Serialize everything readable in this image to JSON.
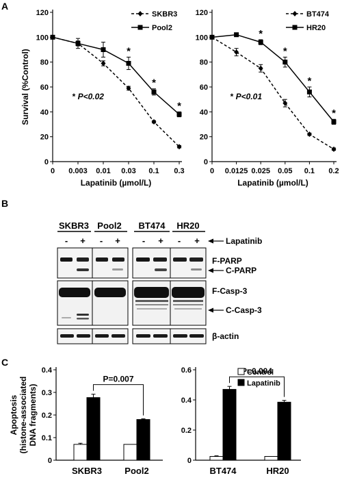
{
  "panels": {
    "A": "A",
    "B": "B",
    "C": "C"
  },
  "chart_data": [
    {
      "type": "line",
      "id": "a1",
      "x_categories": [
        "0",
        "0.003",
        "0.01",
        "0.03",
        "0.1",
        "0.3"
      ],
      "ylabel": "Survival (%Control)",
      "xlabel": "Lapatinib (µmol/L)",
      "ylim": [
        0,
        120
      ],
      "yticks": [
        0,
        20,
        40,
        60,
        80,
        100,
        120
      ],
      "series": [
        {
          "name": "SKBR3",
          "dashed": true,
          "marker": "diamond",
          "values": [
            100,
            95,
            79,
            59,
            32,
            12
          ],
          "errors": [
            0,
            2,
            2,
            1.5,
            1,
            1
          ]
        },
        {
          "name": "Pool2",
          "dashed": false,
          "marker": "square",
          "values": [
            100,
            95,
            90,
            79,
            56,
            38
          ],
          "errors": [
            0,
            4,
            6,
            5,
            2.5,
            2
          ]
        }
      ],
      "stars": [
        3,
        4,
        5
      ],
      "star_symbol": "*",
      "pvalue": {
        "prefix": "* ",
        "label": "P<0.02"
      },
      "legend": "top-right"
    },
    {
      "type": "line",
      "id": "a2",
      "x_categories": [
        "0",
        "0.0125",
        "0.025",
        "0.05",
        "0.1",
        "0.2"
      ],
      "ylabel": "",
      "xlabel": "Lapatinib (µmol/L)",
      "ylim": [
        0,
        120
      ],
      "yticks": [
        0,
        20,
        40,
        60,
        80,
        100,
        120
      ],
      "series": [
        {
          "name": "BT474",
          "dashed": true,
          "marker": "diamond",
          "values": [
            100,
            88,
            75,
            47,
            22,
            10
          ],
          "errors": [
            0,
            3,
            3,
            3,
            1,
            1
          ]
        },
        {
          "name": "HR20",
          "dashed": false,
          "marker": "square",
          "values": [
            100,
            102,
            96,
            80,
            56,
            32
          ],
          "errors": [
            0,
            1,
            2,
            4,
            4,
            2
          ]
        }
      ],
      "stars": [
        2,
        3,
        4,
        5
      ],
      "star_symbol": "*",
      "pvalue": {
        "prefix": "* ",
        "label": "P<0.01"
      },
      "legend": "top-right"
    },
    {
      "type": "bar",
      "id": "c1",
      "categories": [
        "SKBR3",
        "Pool2"
      ],
      "ylabel_lines": [
        "Apoptosis",
        "(histone-associated",
        "DNA fragments)"
      ],
      "ylim": [
        0,
        0.4
      ],
      "yticks": [
        0,
        0.1,
        0.2,
        0.3,
        0.4
      ],
      "series": [
        {
          "name": "Control",
          "fill": "#ffffff",
          "values": [
            0.07,
            0.07
          ],
          "errors": [
            0.005,
            0
          ]
        },
        {
          "name": "Lapatinib",
          "fill": "#000000",
          "values": [
            0.277,
            0.18
          ],
          "errors": [
            0.015,
            0.003
          ]
        }
      ],
      "bracket": {
        "label": "P=0.007"
      }
    },
    {
      "type": "bar",
      "id": "c2",
      "categories": [
        "BT474",
        "HR20"
      ],
      "ylim": [
        0,
        0.6
      ],
      "yticks": [
        0,
        0.2,
        0.4,
        0.6
      ],
      "series": [
        {
          "name": "Control",
          "fill": "#ffffff",
          "values": [
            0.025,
            0.025
          ],
          "errors": [
            0.004,
            0
          ]
        },
        {
          "name": "Lapatinib",
          "fill": "#000000",
          "values": [
            0.47,
            0.385
          ],
          "errors": [
            0.02,
            0.012
          ]
        }
      ],
      "bracket": {
        "label": "P=0.004"
      },
      "legend": "top-right"
    }
  ],
  "blot": {
    "groups": [
      "SKBR3",
      "Pool2",
      "BT474",
      "HR20"
    ],
    "lane_marks": [
      "-",
      "+",
      "-",
      "+",
      "-",
      "+",
      "-",
      "+"
    ],
    "treatment": "Lapatinib",
    "bands": [
      "F-PARP",
      "C-PARP",
      "F-Casp-3",
      "C-Casp-3",
      "β-actin"
    ]
  }
}
